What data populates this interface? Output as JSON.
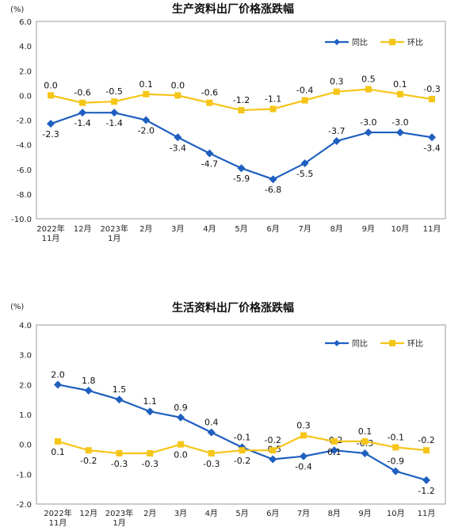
{
  "chart_data": [
    {
      "type": "line",
      "title": "生产资料出厂价格涨跌幅",
      "unit_label": "(%)",
      "categories": [
        [
          "2022年",
          "11月"
        ],
        [
          "12月"
        ],
        [
          "2023年",
          "1月"
        ],
        [
          "2月"
        ],
        [
          "3月"
        ],
        [
          "4月"
        ],
        [
          "5月"
        ],
        [
          "6月"
        ],
        [
          "7月"
        ],
        [
          "8月"
        ],
        [
          "9月"
        ],
        [
          "10月"
        ],
        [
          "11月"
        ]
      ],
      "ylim": [
        -10.0,
        6.0
      ],
      "yticks": [
        "6.0",
        "4.0",
        "2.0",
        "0.0",
        "-2.0",
        "-4.0",
        "-6.0",
        "-8.0",
        "-10.0"
      ],
      "legend_position": "top-right",
      "series": [
        {
          "name": "同比",
          "color": "#1f5fbf",
          "marker": "diamond",
          "values": [
            -2.3,
            -1.4,
            -1.4,
            -2.0,
            -3.4,
            -4.7,
            -5.9,
            -6.8,
            -5.5,
            -3.7,
            -3.0,
            -3.0,
            -3.4
          ],
          "labels": [
            "-2.3",
            "-1.4",
            "-1.4",
            "-2.0",
            "-3.4",
            "-4.7",
            "-5.9",
            "-6.8",
            "-5.5",
            "-3.7",
            "-3.0",
            "-3.0",
            "-3.4"
          ]
        },
        {
          "name": "环比",
          "color": "#f5c518",
          "marker": "square",
          "values": [
            0.0,
            -0.6,
            -0.5,
            0.1,
            0.0,
            -0.6,
            -1.2,
            -1.1,
            -0.4,
            0.3,
            0.5,
            0.1,
            -0.3
          ],
          "labels": [
            "0.0",
            "-0.6",
            "-0.5",
            "0.1",
            "0.0",
            "-0.6",
            "-1.2",
            "-1.1",
            "-0.4",
            "0.3",
            "0.5",
            "0.1",
            "-0.3"
          ]
        }
      ]
    },
    {
      "type": "line",
      "title": "生活资料出厂价格涨跌幅",
      "unit_label": "(%)",
      "categories": [
        [
          "2022年",
          "11月"
        ],
        [
          "12月"
        ],
        [
          "2023年",
          "1月"
        ],
        [
          "2月"
        ],
        [
          "3月"
        ],
        [
          "4月"
        ],
        [
          "5月"
        ],
        [
          "6月"
        ],
        [
          "7月"
        ],
        [
          "8月"
        ],
        [
          "9月"
        ],
        [
          "10月"
        ],
        [
          "11月"
        ]
      ],
      "ylim": [
        -2.0,
        4.0
      ],
      "yticks": [
        "4.0",
        "3.0",
        "2.0",
        "1.0",
        "0.0",
        "-1.0",
        "-2.0"
      ],
      "legend_position": "top-right",
      "series": [
        {
          "name": "同比",
          "color": "#1f5fbf",
          "marker": "diamond",
          "values": [
            2.0,
            1.8,
            1.5,
            1.1,
            0.9,
            0.4,
            -0.1,
            -0.5,
            -0.4,
            -0.2,
            -0.3,
            -0.9,
            -1.2
          ],
          "labels": [
            "2.0",
            "1.8",
            "1.5",
            "1.1",
            "0.9",
            "0.4",
            "-0.1",
            "-0.5",
            "-0.4",
            "-0.2",
            "-0.3",
            "-0.9",
            "-1.2"
          ]
        },
        {
          "name": "环比",
          "color": "#f5c518",
          "marker": "square",
          "values": [
            0.1,
            -0.2,
            -0.3,
            -0.3,
            0.0,
            -0.3,
            -0.2,
            -0.2,
            0.3,
            0.1,
            0.1,
            -0.1,
            -0.2
          ],
          "labels": [
            "0.1",
            "-0.2",
            "-0.3",
            "-0.3",
            "0.0",
            "-0.3",
            "-0.2",
            "-0.2",
            "0.3",
            "0.1",
            "0.1",
            "-0.1",
            "-0.2"
          ]
        }
      ]
    }
  ]
}
